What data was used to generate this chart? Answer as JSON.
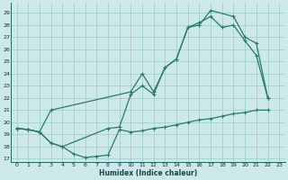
{
  "xlabel": "Humidex (Indice chaleur)",
  "bg_color": "#cce8e8",
  "grid_color": "#99cccc",
  "line_color": "#2a7a6a",
  "xlim": [
    -0.5,
    23.5
  ],
  "ylim": [
    16.7,
    29.8
  ],
  "yticks": [
    17,
    18,
    19,
    20,
    21,
    22,
    23,
    24,
    25,
    26,
    27,
    28,
    29
  ],
  "xticks": [
    0,
    1,
    2,
    3,
    4,
    5,
    6,
    7,
    8,
    9,
    10,
    11,
    12,
    13,
    14,
    15,
    16,
    17,
    18,
    19,
    20,
    21,
    22,
    23
  ],
  "line1_x": [
    0,
    1,
    2,
    3,
    10,
    11,
    12,
    13,
    14,
    15,
    16,
    17,
    19,
    20,
    21,
    22
  ],
  "line1_y": [
    19.5,
    19.4,
    19.2,
    21.0,
    22.5,
    24.0,
    22.5,
    24.5,
    25.2,
    27.8,
    28.0,
    29.2,
    28.7,
    27.0,
    26.5,
    22.0
  ],
  "line2_x": [
    0,
    1,
    2,
    3,
    4,
    8,
    9,
    10,
    11,
    12,
    13,
    14,
    15,
    16,
    17,
    18,
    19,
    20,
    21,
    22
  ],
  "line2_y": [
    19.5,
    19.4,
    19.2,
    18.3,
    18.0,
    19.5,
    19.6,
    22.3,
    23.0,
    22.3,
    24.5,
    25.2,
    27.8,
    28.2,
    28.7,
    27.8,
    28.0,
    26.7,
    25.5,
    22.0
  ],
  "line3_x": [
    0,
    1,
    2,
    3,
    4,
    5,
    6,
    7,
    8,
    9,
    10,
    11,
    12,
    13,
    14,
    15,
    16,
    17,
    18,
    19,
    20,
    21,
    22
  ],
  "line3_y": [
    19.5,
    19.4,
    19.2,
    18.3,
    18.0,
    17.4,
    17.1,
    17.2,
    17.3,
    19.4,
    19.2,
    19.3,
    19.5,
    19.6,
    19.8,
    20.0,
    20.2,
    20.3,
    20.5,
    20.7,
    20.8,
    21.0,
    21.0
  ]
}
